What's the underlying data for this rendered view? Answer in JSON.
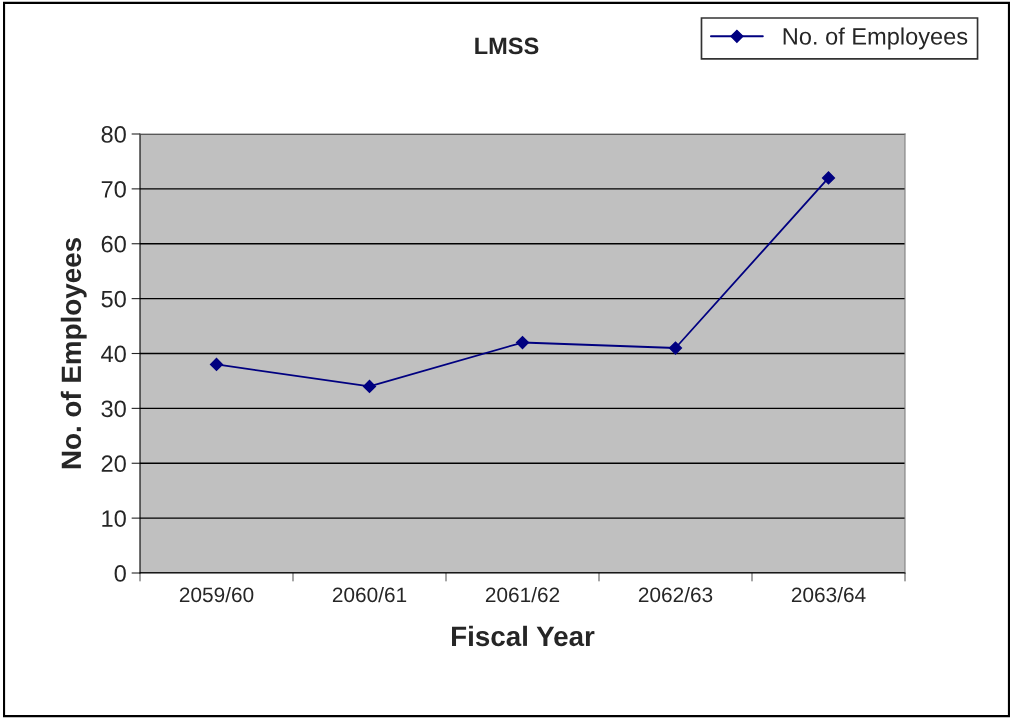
{
  "chart_data": {
    "type": "line",
    "title": "LMSS",
    "xlabel": "Fiscal Year",
    "ylabel": "No. of Employees",
    "categories": [
      "2059/60",
      "2060/61",
      "2061/62",
      "2062/63",
      "2063/64"
    ],
    "series": [
      {
        "name": "No. of Employees",
        "color": "#000080",
        "values": [
          38,
          34,
          42,
          41,
          72
        ]
      }
    ],
    "ylim": [
      0,
      80
    ],
    "yticks": [
      0,
      10,
      20,
      30,
      40,
      50,
      60,
      70,
      80
    ],
    "grid": "y",
    "legend": "top right",
    "marker": "diamond",
    "line_style": "solid"
  }
}
